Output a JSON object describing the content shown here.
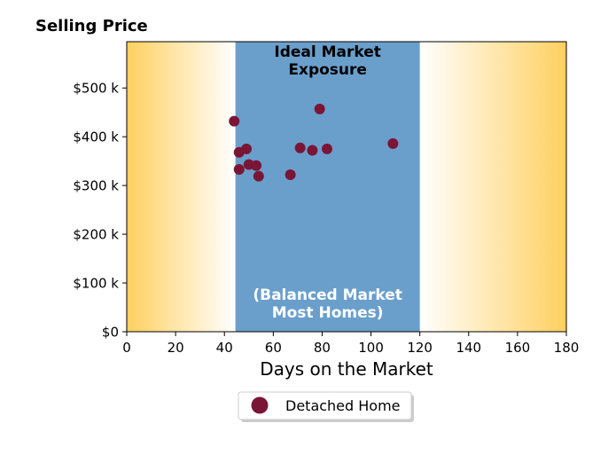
{
  "chart_data": {
    "type": "scatter",
    "title": "Selling Price",
    "xlabel": "Days on the Market",
    "ylabel": "",
    "xlim": [
      0,
      180
    ],
    "ylim": [
      0,
      595000
    ],
    "xticks": [
      0,
      20,
      40,
      60,
      80,
      100,
      120,
      140,
      160,
      180
    ],
    "xtick_labels": [
      "0",
      "20",
      "40",
      "60",
      "80",
      "100",
      "120",
      "140",
      "160",
      "180"
    ],
    "yticks": [
      0,
      100000,
      200000,
      300000,
      400000,
      500000
    ],
    "ytick_labels": [
      "$0",
      "$100 k",
      "$200 k",
      "$300 k",
      "$400 k",
      "$500 k"
    ],
    "grid": false,
    "legend_position": "bottom-center",
    "band": {
      "x_start": 44.5,
      "x_end": 120,
      "color": "#6a9fcc",
      "top_label_lines": [
        "Ideal Market",
        "Exposure"
      ],
      "bottom_label_lines": [
        "(Balanced Market",
        "Most Homes)"
      ]
    },
    "gradient_color": "#ffd060",
    "series": [
      {
        "name": "Detached Home",
        "color": "#7b1535",
        "points": [
          {
            "x": 44,
            "y": 432000
          },
          {
            "x": 46,
            "y": 368000
          },
          {
            "x": 46,
            "y": 333000
          },
          {
            "x": 49,
            "y": 375000
          },
          {
            "x": 50,
            "y": 343000
          },
          {
            "x": 53,
            "y": 341000
          },
          {
            "x": 54,
            "y": 319000
          },
          {
            "x": 67,
            "y": 322000
          },
          {
            "x": 71,
            "y": 377000
          },
          {
            "x": 76,
            "y": 372000
          },
          {
            "x": 79,
            "y": 457000
          },
          {
            "x": 82,
            "y": 375000
          },
          {
            "x": 109,
            "y": 386000
          }
        ]
      }
    ]
  }
}
